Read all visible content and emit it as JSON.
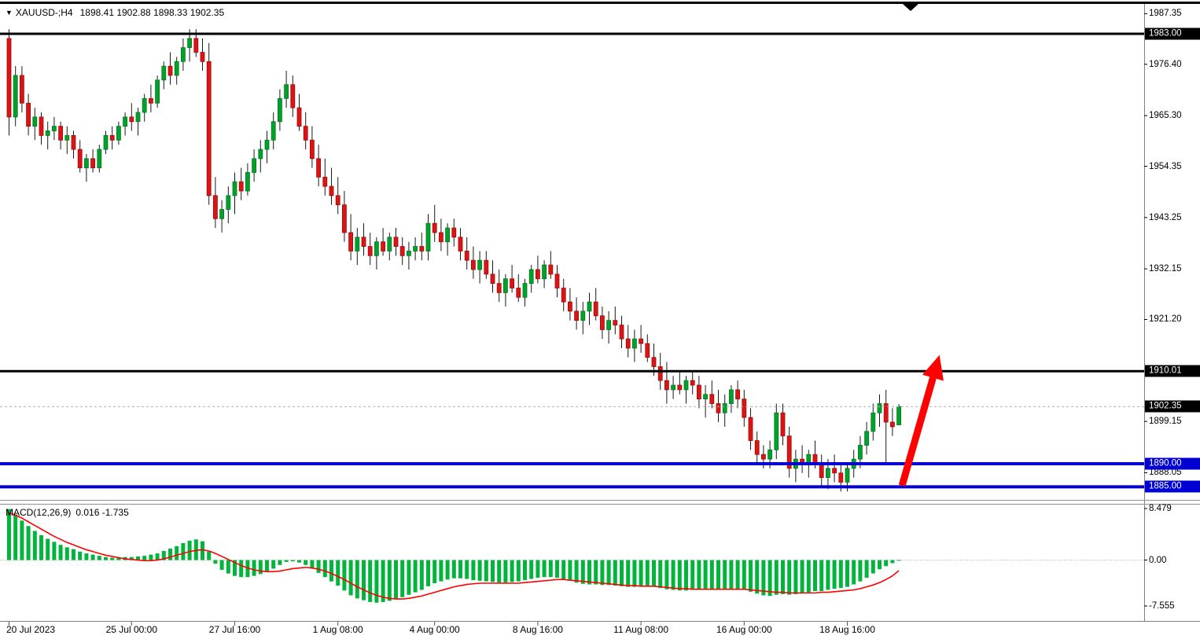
{
  "header": {
    "symbol_period": "XAUUSD-;H4",
    "ohlc_values": "1898.41 1902.88 1898.33 1902.35"
  },
  "colors": {
    "bull": "#00A22C",
    "bull_border": "#007A20",
    "bear": "#DC1414",
    "bear_border": "#9E0B0B",
    "wick": "#1A1A1A",
    "macd_bar": "#00B43C",
    "macd_signal": "#FF0000",
    "level_black": "#000000",
    "level_blue": "#0000D2",
    "current_price_line": "#B0B0B0",
    "arrow": "#FF0000"
  },
  "price_axis": {
    "ticks": [
      "1987.35",
      "1976.40",
      "1965.30",
      "1954.35",
      "1943.25",
      "1932.15",
      "1921.20",
      "1899.15",
      "1888.05"
    ],
    "badges": [
      {
        "label": "1983.00",
        "color": "#000000"
      },
      {
        "label": "1910.01",
        "color": "#000000"
      },
      {
        "label": "1902.35",
        "color": "#000000"
      },
      {
        "label": "1890.00",
        "color": "#0000D2"
      },
      {
        "label": "1885.00",
        "color": "#0000D2"
      }
    ]
  },
  "levels": [
    {
      "name": "resistance-line-1983",
      "price": 1983.0,
      "color": "#000000",
      "width": 3,
      "style": "solid"
    },
    {
      "name": "resistance-line-1910",
      "price": 1910.01,
      "color": "#000000",
      "width": 3,
      "style": "solid"
    },
    {
      "name": "current-price-line",
      "price": 1902.35,
      "color": "#B0B0B0",
      "width": 1,
      "style": "dash"
    },
    {
      "name": "support-line-1890",
      "price": 1890.0,
      "color": "#0000D2",
      "width": 4,
      "style": "solid"
    },
    {
      "name": "support-line-1885",
      "price": 1885.0,
      "color": "#0000D2",
      "width": 4,
      "style": "solid"
    }
  ],
  "time_axis": {
    "labels": [
      {
        "bar": 0,
        "text": "20 Jul 2023",
        "align": "start"
      },
      {
        "bar": 19,
        "text": "25 Jul 00:00"
      },
      {
        "bar": 35,
        "text": "27 Jul 16:00"
      },
      {
        "bar": 51,
        "text": "1 Aug 08:00"
      },
      {
        "bar": 66,
        "text": "4 Aug 00:00"
      },
      {
        "bar": 82,
        "text": "8 Aug 16:00"
      },
      {
        "bar": 98,
        "text": "11 Aug 08:00"
      },
      {
        "bar": 114,
        "text": "16 Aug 00:00"
      },
      {
        "bar": 130,
        "text": "18 Aug 16:00"
      }
    ]
  },
  "macd_panel": {
    "label": "MACD(12,26,9)",
    "values": "0.016 -1.735",
    "axis": [
      "8.479",
      "0.00",
      "-7.555"
    ]
  },
  "annotation_arrow": {
    "color": "#FF0000",
    "from": {
      "bar": 138.8,
      "price": 1885.3
    },
    "to": {
      "bar": 144.6,
      "price": 1913.5
    }
  },
  "chart_data": {
    "type": "candlestick",
    "symbol": "XAUUSD",
    "timeframe": "H4",
    "title": "XAUUSD-;H4 1898.41 1902.88 1898.33 1902.35",
    "price_range_visible": [
      1882.4,
      1989.6
    ],
    "x_range": "20 Jul 2023 - 21 Aug 2023, H4 bars",
    "candles": [
      [
        1982,
        1984,
        1961,
        1965
      ],
      [
        1965,
        1976,
        1963,
        1974
      ],
      [
        1974,
        1976,
        1966,
        1968
      ],
      [
        1968,
        1970,
        1961,
        1963
      ],
      [
        1963,
        1967,
        1960,
        1965
      ],
      [
        1965,
        1966,
        1959,
        1961
      ],
      [
        1961,
        1964,
        1958,
        1962
      ],
      [
        1962,
        1965,
        1960,
        1963
      ],
      [
        1963,
        1964,
        1958,
        1960
      ],
      [
        1960,
        1963,
        1957,
        1961
      ],
      [
        1961,
        1962,
        1956,
        1958
      ],
      [
        1958,
        1960,
        1953,
        1954
      ],
      [
        1954,
        1957,
        1951,
        1956
      ],
      [
        1956,
        1958,
        1953,
        1954
      ],
      [
        1954,
        1959,
        1953,
        1958
      ],
      [
        1958,
        1962,
        1957,
        1961
      ],
      [
        1961,
        1963,
        1958,
        1960
      ],
      [
        1960,
        1964,
        1959,
        1963
      ],
      [
        1963,
        1966,
        1961,
        1965
      ],
      [
        1965,
        1968,
        1962,
        1964
      ],
      [
        1964,
        1967,
        1961,
        1966
      ],
      [
        1966,
        1970,
        1964,
        1969
      ],
      [
        1969,
        1972,
        1966,
        1968
      ],
      [
        1968,
        1974,
        1967,
        1973
      ],
      [
        1973,
        1977,
        1971,
        1976
      ],
      [
        1976,
        1979,
        1972,
        1974
      ],
      [
        1974,
        1978,
        1972,
        1977
      ],
      [
        1977,
        1982,
        1975,
        1980
      ],
      [
        1980,
        1984,
        1977,
        1982
      ],
      [
        1982,
        1984,
        1978,
        1979
      ],
      [
        1979,
        1982,
        1975,
        1977
      ],
      [
        1977,
        1981,
        1946,
        1948
      ],
      [
        1948,
        1952,
        1941,
        1943
      ],
      [
        1943,
        1947,
        1940,
        1945
      ],
      [
        1945,
        1950,
        1942,
        1948
      ],
      [
        1948,
        1953,
        1944,
        1951
      ],
      [
        1951,
        1954,
        1947,
        1949
      ],
      [
        1949,
        1955,
        1948,
        1953
      ],
      [
        1953,
        1958,
        1951,
        1956
      ],
      [
        1956,
        1960,
        1953,
        1958
      ],
      [
        1958,
        1962,
        1955,
        1960
      ],
      [
        1960,
        1966,
        1958,
        1964
      ],
      [
        1964,
        1971,
        1962,
        1969
      ],
      [
        1969,
        1975,
        1967,
        1972
      ],
      [
        1972,
        1974,
        1965,
        1967
      ],
      [
        1967,
        1970,
        1962,
        1963
      ],
      [
        1963,
        1966,
        1958,
        1960
      ],
      [
        1960,
        1963,
        1954,
        1956
      ],
      [
        1956,
        1959,
        1950,
        1952
      ],
      [
        1952,
        1956,
        1948,
        1950
      ],
      [
        1950,
        1954,
        1946,
        1948
      ],
      [
        1948,
        1952,
        1944,
        1946
      ],
      [
        1946,
        1949,
        1938,
        1940
      ],
      [
        1940,
        1944,
        1934,
        1936
      ],
      [
        1936,
        1941,
        1933,
        1939
      ],
      [
        1939,
        1942,
        1935,
        1937
      ],
      [
        1937,
        1940,
        1933,
        1935
      ],
      [
        1935,
        1939,
        1932,
        1938
      ],
      [
        1938,
        1941,
        1935,
        1936
      ],
      [
        1936,
        1940,
        1934,
        1939
      ],
      [
        1939,
        1941,
        1935,
        1937
      ],
      [
        1937,
        1939,
        1933,
        1935
      ],
      [
        1935,
        1938,
        1932,
        1936
      ],
      [
        1936,
        1939,
        1934,
        1937
      ],
      [
        1937,
        1940,
        1934,
        1936
      ],
      [
        1936,
        1944,
        1934,
        1942
      ],
      [
        1942,
        1946,
        1938,
        1940
      ],
      [
        1940,
        1943,
        1936,
        1938
      ],
      [
        1938,
        1942,
        1935,
        1941
      ],
      [
        1941,
        1943,
        1937,
        1939
      ],
      [
        1939,
        1941,
        1934,
        1936
      ],
      [
        1936,
        1939,
        1932,
        1934
      ],
      [
        1934,
        1937,
        1930,
        1932
      ],
      [
        1932,
        1936,
        1929,
        1934
      ],
      [
        1934,
        1936,
        1930,
        1931
      ],
      [
        1931,
        1934,
        1927,
        1929
      ],
      [
        1929,
        1932,
        1925,
        1927
      ],
      [
        1927,
        1931,
        1924,
        1930
      ],
      [
        1930,
        1933,
        1927,
        1928
      ],
      [
        1928,
        1931,
        1925,
        1926
      ],
      [
        1926,
        1930,
        1924,
        1929
      ],
      [
        1929,
        1933,
        1927,
        1932
      ],
      [
        1932,
        1935,
        1929,
        1930
      ],
      [
        1930,
        1934,
        1928,
        1933
      ],
      [
        1933,
        1936,
        1930,
        1931
      ],
      [
        1931,
        1933,
        1926,
        1928
      ],
      [
        1928,
        1930,
        1923,
        1925
      ],
      [
        1925,
        1928,
        1921,
        1923
      ],
      [
        1923,
        1926,
        1919,
        1921
      ],
      [
        1921,
        1925,
        1918,
        1923
      ],
      [
        1923,
        1927,
        1920,
        1925
      ],
      [
        1925,
        1928,
        1921,
        1922
      ],
      [
        1922,
        1924,
        1917,
        1919
      ],
      [
        1919,
        1923,
        1916,
        1921
      ],
      [
        1921,
        1924,
        1918,
        1920
      ],
      [
        1920,
        1922,
        1915,
        1917
      ],
      [
        1917,
        1920,
        1913,
        1915
      ],
      [
        1915,
        1919,
        1912,
        1917
      ],
      [
        1917,
        1920,
        1914,
        1916
      ],
      [
        1916,
        1918,
        1912,
        1913
      ],
      [
        1913,
        1916,
        1909,
        1911
      ],
      [
        1911,
        1914,
        1906,
        1908
      ],
      [
        1908,
        1912,
        1903,
        1906
      ],
      [
        1906,
        1909,
        1904,
        1907
      ],
      [
        1907,
        1910,
        1905,
        1906
      ],
      [
        1906,
        1909,
        1903,
        1908
      ],
      [
        1908,
        1910,
        1905,
        1907
      ],
      [
        1907,
        1909,
        1902,
        1904
      ],
      [
        1904,
        1907,
        1900,
        1905
      ],
      [
        1905,
        1908,
        1902,
        1903
      ],
      [
        1903,
        1906,
        1899,
        1901
      ],
      [
        1901,
        1905,
        1898,
        1903
      ],
      [
        1903,
        1907,
        1901,
        1906
      ],
      [
        1906,
        1908,
        1902,
        1904
      ],
      [
        1904,
        1906,
        1898,
        1900
      ],
      [
        1900,
        1902,
        1893,
        1895
      ],
      [
        1895,
        1897,
        1890,
        1892
      ],
      [
        1892,
        1894,
        1889,
        1891
      ],
      [
        1891,
        1895,
        1889,
        1893
      ],
      [
        1893,
        1903,
        1891,
        1901
      ],
      [
        1901,
        1903,
        1894,
        1896
      ],
      [
        1896,
        1898,
        1887,
        1889
      ],
      [
        1889,
        1893,
        1886,
        1891
      ],
      [
        1891,
        1894,
        1888,
        1890
      ],
      [
        1890,
        1893,
        1887,
        1892
      ],
      [
        1892,
        1895,
        1889,
        1890
      ],
      [
        1890,
        1892,
        1885,
        1887
      ],
      [
        1887,
        1891,
        1884.5,
        1889
      ],
      [
        1889,
        1892,
        1886,
        1888
      ],
      [
        1888,
        1890,
        1884,
        1886
      ],
      [
        1886,
        1890,
        1884,
        1889
      ],
      [
        1889,
        1893,
        1887,
        1891
      ],
      [
        1891,
        1896,
        1889,
        1894
      ],
      [
        1894,
        1899,
        1892,
        1897
      ],
      [
        1897,
        1903,
        1895,
        1901
      ],
      [
        1901,
        1905,
        1898,
        1903
      ],
      [
        1903,
        1906,
        1890,
        1899
      ],
      [
        1899,
        1902,
        1896,
        1898
      ],
      [
        1898.41,
        1902.88,
        1898.33,
        1902.35
      ]
    ],
    "macd": {
      "params": "12,26,9",
      "ylim": [
        -7.555,
        8.479
      ],
      "last_values": {
        "main": 0.016,
        "signal": -1.735
      },
      "histogram": [
        8.4,
        7.5,
        6.5,
        5.6,
        4.8,
        4.1,
        3.5,
        3.0,
        2.5,
        2.1,
        1.8,
        1.4,
        1.1,
        0.9,
        0.7,
        0.5,
        0.4,
        0.4,
        0.5,
        0.5,
        0.6,
        0.7,
        0.9,
        1.1,
        1.5,
        1.9,
        2.3,
        2.8,
        3.2,
        3.4,
        3.1,
        1.4,
        -0.6,
        -1.6,
        -2.2,
        -2.6,
        -2.8,
        -2.8,
        -2.6,
        -2.3,
        -1.9,
        -1.4,
        -0.8,
        -0.3,
        -0.2,
        -0.4,
        -0.8,
        -1.4,
        -2.1,
        -2.8,
        -3.5,
        -4.2,
        -5.0,
        -5.8,
        -6.3,
        -6.6,
        -6.9,
        -7.0,
        -6.9,
        -6.7,
        -6.4,
        -6.1,
        -5.7,
        -5.3,
        -4.9,
        -4.3,
        -3.8,
        -3.5,
        -3.2,
        -3.0,
        -3.0,
        -3.1,
        -3.3,
        -3.4,
        -3.5,
        -3.6,
        -3.7,
        -3.7,
        -3.6,
        -3.5,
        -3.3,
        -3.1,
        -2.9,
        -2.8,
        -2.8,
        -2.9,
        -3.1,
        -3.4,
        -3.7,
        -3.9,
        -4.0,
        -4.0,
        -4.1,
        -4.1,
        -4.2,
        -4.3,
        -4.4,
        -4.4,
        -4.3,
        -4.3,
        -4.4,
        -4.6,
        -4.8,
        -4.9,
        -5.0,
        -5.0,
        -4.9,
        -4.9,
        -4.8,
        -4.8,
        -4.9,
        -4.9,
        -4.8,
        -4.7,
        -4.8,
        -5.2,
        -5.5,
        -5.8,
        -5.9,
        -5.7,
        -5.6,
        -5.7,
        -5.6,
        -5.5,
        -5.3,
        -5.1,
        -5.1,
        -4.9,
        -4.7,
        -4.6,
        -4.4,
        -4.0,
        -3.5,
        -2.9,
        -2.2,
        -1.5,
        -1.0,
        -0.5,
        0.016
      ],
      "signal": [
        7.8,
        7.4,
        6.9,
        6.3,
        5.7,
        5.1,
        4.5,
        3.9,
        3.4,
        2.9,
        2.5,
        2.1,
        1.7,
        1.4,
        1.1,
        0.8,
        0.6,
        0.4,
        0.2,
        0.1,
        0.0,
        -0.1,
        -0.1,
        0.0,
        0.2,
        0.5,
        0.8,
        1.1,
        1.4,
        1.6,
        1.7,
        1.5,
        1.1,
        0.6,
        0.1,
        -0.4,
        -0.9,
        -1.3,
        -1.6,
        -1.8,
        -1.9,
        -1.9,
        -1.8,
        -1.6,
        -1.4,
        -1.3,
        -1.2,
        -1.3,
        -1.5,
        -1.8,
        -2.2,
        -2.7,
        -3.2,
        -3.8,
        -4.4,
        -4.9,
        -5.4,
        -5.8,
        -6.1,
        -6.3,
        -6.4,
        -6.4,
        -6.3,
        -6.1,
        -5.9,
        -5.6,
        -5.3,
        -5.0,
        -4.7,
        -4.4,
        -4.2,
        -4.0,
        -3.9,
        -3.8,
        -3.8,
        -3.8,
        -3.8,
        -3.8,
        -3.8,
        -3.8,
        -3.7,
        -3.6,
        -3.5,
        -3.4,
        -3.3,
        -3.2,
        -3.2,
        -3.3,
        -3.4,
        -3.5,
        -3.6,
        -3.7,
        -3.8,
        -3.9,
        -4.0,
        -4.1,
        -4.2,
        -4.2,
        -4.3,
        -4.3,
        -4.3,
        -4.4,
        -4.5,
        -4.6,
        -4.7,
        -4.7,
        -4.8,
        -4.8,
        -4.8,
        -4.8,
        -4.8,
        -4.8,
        -4.8,
        -4.8,
        -4.8,
        -4.9,
        -5.0,
        -5.1,
        -5.2,
        -5.3,
        -5.3,
        -5.4,
        -5.4,
        -5.4,
        -5.4,
        -5.4,
        -5.3,
        -5.3,
        -5.2,
        -5.1,
        -5.0,
        -4.9,
        -4.7,
        -4.4,
        -4.1,
        -3.7,
        -3.2,
        -2.6,
        -1.735
      ]
    }
  }
}
